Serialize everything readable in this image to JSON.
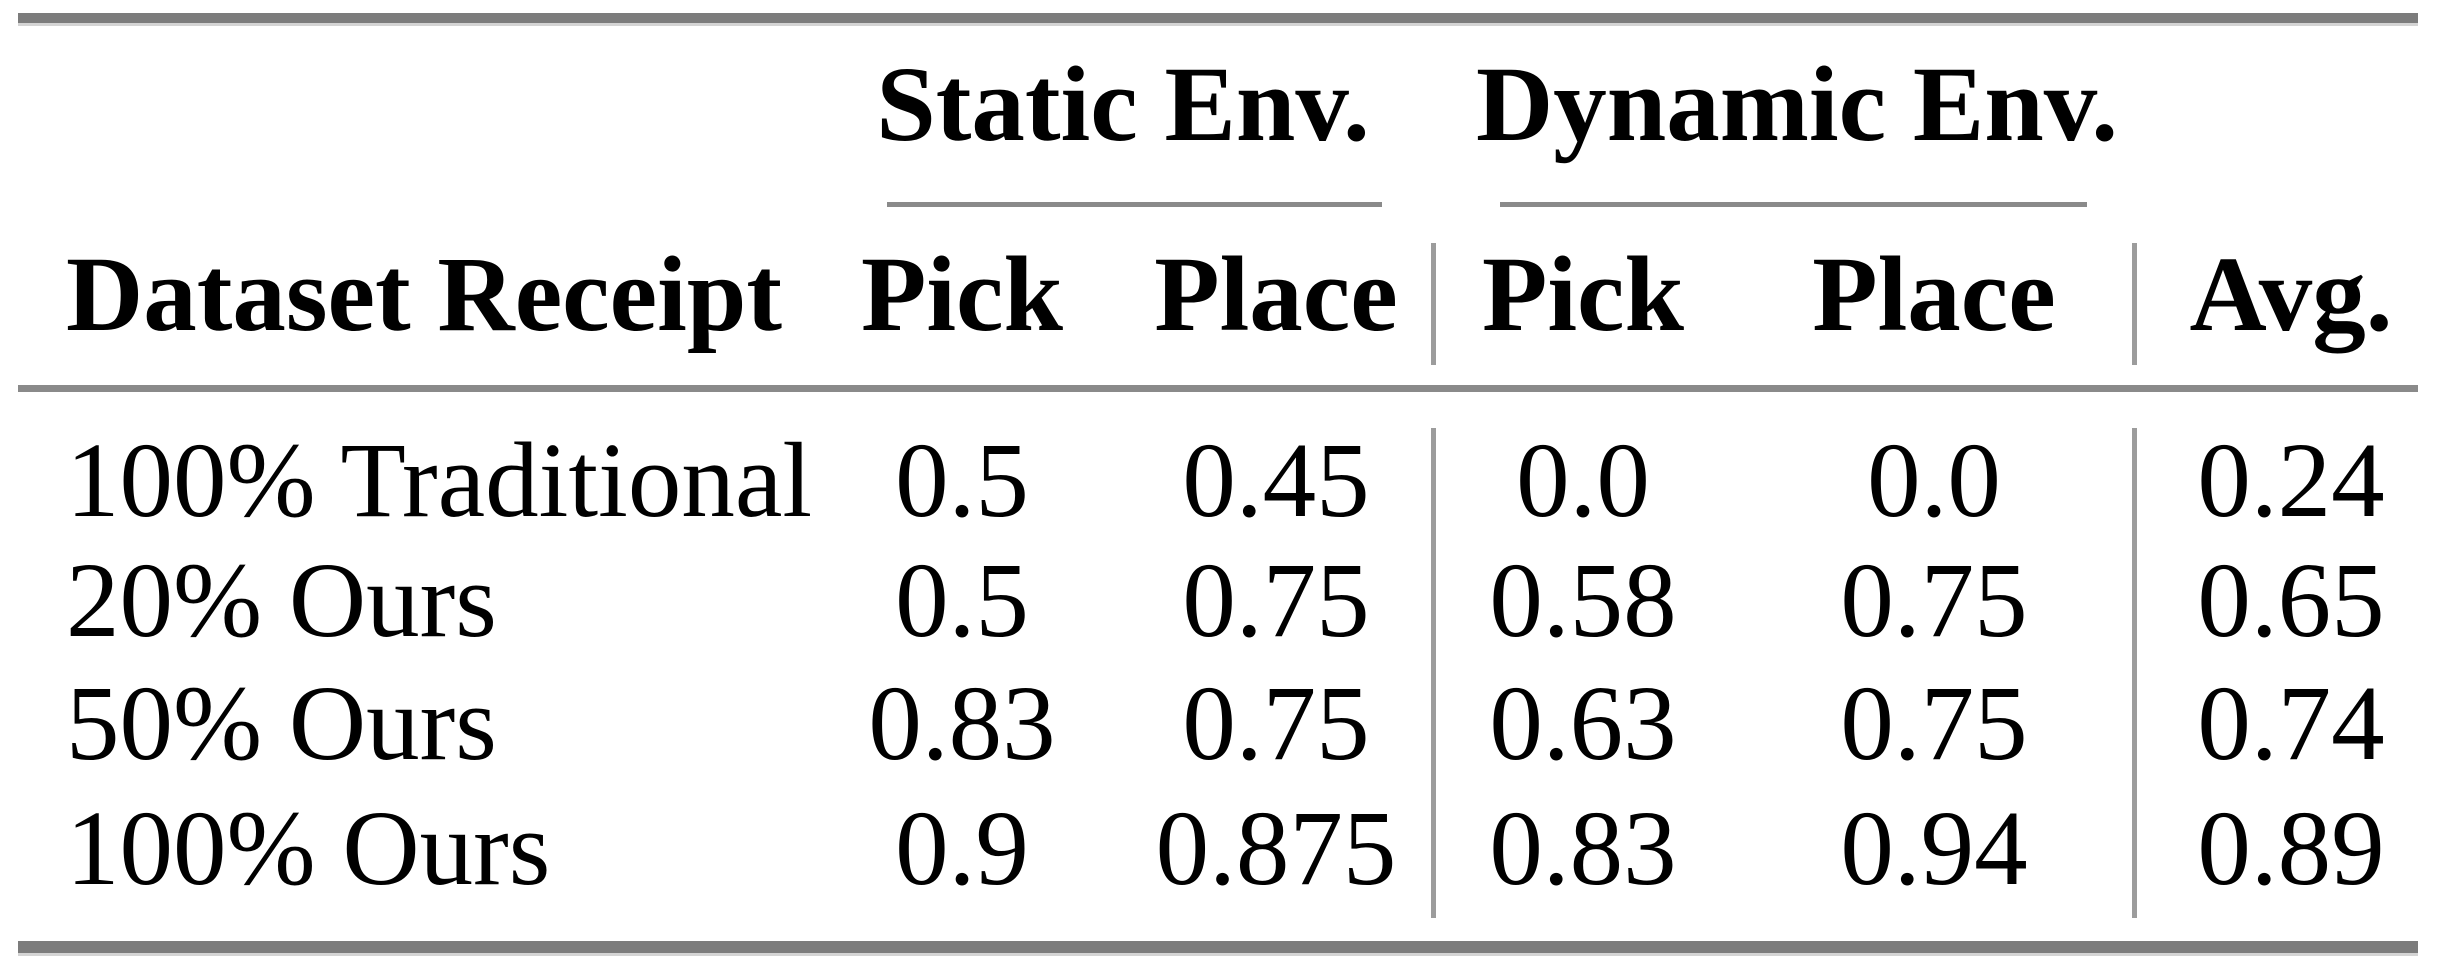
{
  "figure": {
    "type": "paper-results-table",
    "column_groups": [
      {
        "label": "Static Env.",
        "columns": [
          "Pick",
          "Place"
        ]
      },
      {
        "label": "Dynamic Env.",
        "columns": [
          "Pick",
          "Place"
        ]
      }
    ],
    "headers": {
      "row_label": "Dataset Receipt",
      "static_pick": "Pick",
      "static_place": "Place",
      "dynamic_pick": "Pick",
      "dynamic_place": "Place",
      "avg": "Avg."
    },
    "rows": [
      {
        "label": "100% Traditional",
        "static_pick": "0.5",
        "static_place": "0.45",
        "dynamic_pick": "0.0",
        "dynamic_place": "0.0",
        "avg": "0.24"
      },
      {
        "label": "20% Ours",
        "static_pick": "0.5",
        "static_place": "0.75",
        "dynamic_pick": "0.58",
        "dynamic_place": "0.75",
        "avg": "0.65"
      },
      {
        "label": "50% Ours",
        "static_pick": "0.83",
        "static_place": "0.75",
        "dynamic_pick": "0.63",
        "dynamic_place": "0.75",
        "avg": "0.74"
      },
      {
        "label": "100% Ours",
        "static_pick": "0.9",
        "static_place": "0.875",
        "dynamic_pick": "0.83",
        "dynamic_place": "0.94",
        "avg": "0.89"
      }
    ],
    "colors": {
      "text": "#000000",
      "thick_rule": "#7c7c7c",
      "thin_rule": "#8a8a8a",
      "vertical_rule": "#9c9c9c",
      "rule_highlight": "#d4d4d4",
      "background": "#ffffff"
    }
  },
  "chart_data": {
    "type": "table",
    "title": "",
    "column_groups": [
      "",
      "Static Env.",
      "Static Env.",
      "Dynamic Env.",
      "Dynamic Env.",
      ""
    ],
    "columns": [
      "Dataset Receipt",
      "Pick",
      "Place",
      "Pick",
      "Place",
      "Avg."
    ],
    "rows": [
      [
        "100% Traditional",
        0.5,
        0.45,
        0.0,
        0.0,
        0.24
      ],
      [
        "20% Ours",
        0.5,
        0.75,
        0.58,
        0.75,
        0.65
      ],
      [
        "50% Ours",
        0.83,
        0.75,
        0.63,
        0.75,
        0.74
      ],
      [
        "100% Ours",
        0.9,
        0.875,
        0.83,
        0.94,
        0.89
      ]
    ]
  }
}
